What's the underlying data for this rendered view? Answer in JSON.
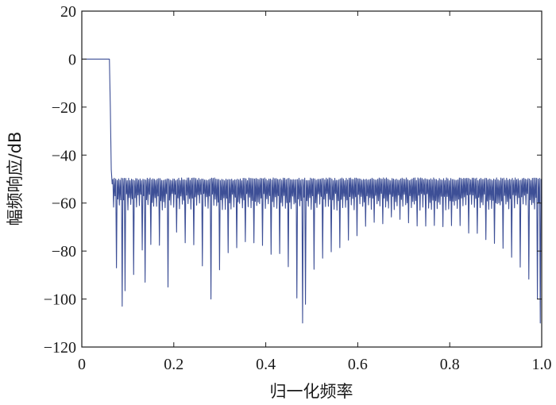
{
  "chart_data": {
    "type": "line",
    "title": "",
    "xlabel": "归一化频率",
    "ylabel": "幅频响应/dB",
    "xlim": [
      0,
      1.0
    ],
    "ylim": [
      -120,
      20
    ],
    "xticks": [
      0,
      0.2,
      0.4,
      0.6,
      0.8,
      1.0
    ],
    "xtick_labels": [
      "0",
      "0.2",
      "0.4",
      "0.6",
      "0.8",
      "1.0"
    ],
    "yticks": [
      20,
      0,
      -20,
      -40,
      -60,
      -80,
      -100,
      -120
    ],
    "ytick_labels": [
      "20",
      "0",
      "−20",
      "−40",
      "−60",
      "−80",
      "−100",
      "−120"
    ],
    "grid": false,
    "line_color": "#3d4f96",
    "series": [
      {
        "passband": {
          "x": [
            0,
            0.06
          ],
          "y": [
            0,
            0
          ]
        },
        "transition": {
          "x": [
            0.06,
            0.062,
            0.064,
            0.066
          ],
          "y": [
            0,
            -20,
            -46,
            -52
          ]
        },
        "stopband": {
          "x_start": 0.066,
          "x_end": 1.0,
          "ripple_count": 150,
          "peak_level": -49.5,
          "valley_level_typical": -60,
          "notch_envelope": {
            "x": [
              0.066,
              0.08,
              0.1,
              0.12,
              0.15,
              0.2,
              0.25,
              0.28,
              0.3,
              0.35,
              0.4,
              0.45,
              0.48,
              0.5,
              0.55,
              0.6,
              0.65,
              0.7,
              0.75,
              0.8,
              0.85,
              0.9,
              0.95,
              0.98,
              1.0
            ],
            "y": [
              -72,
              -95,
              -100,
              -85,
              -80,
              -75,
              -80,
              -100,
              -88,
              -78,
              -80,
              -88,
              -110,
              -90,
              -80,
              -74,
              -70,
              -69,
              -70,
              -72,
              -75,
              -80,
              -88,
              -95,
              -110
            ]
          },
          "deep_notches": [
            {
              "x": 0.086,
              "y": -103
            },
            {
              "x": 0.137,
              "y": -93
            },
            {
              "x": 0.189,
              "y": -95
            },
            {
              "x": 0.282,
              "y": -100
            },
            {
              "x": 0.483,
              "y": -110
            },
            {
              "x": 0.988,
              "y": -100
            },
            {
              "x": 0.997,
              "y": -110
            }
          ]
        }
      }
    ]
  }
}
